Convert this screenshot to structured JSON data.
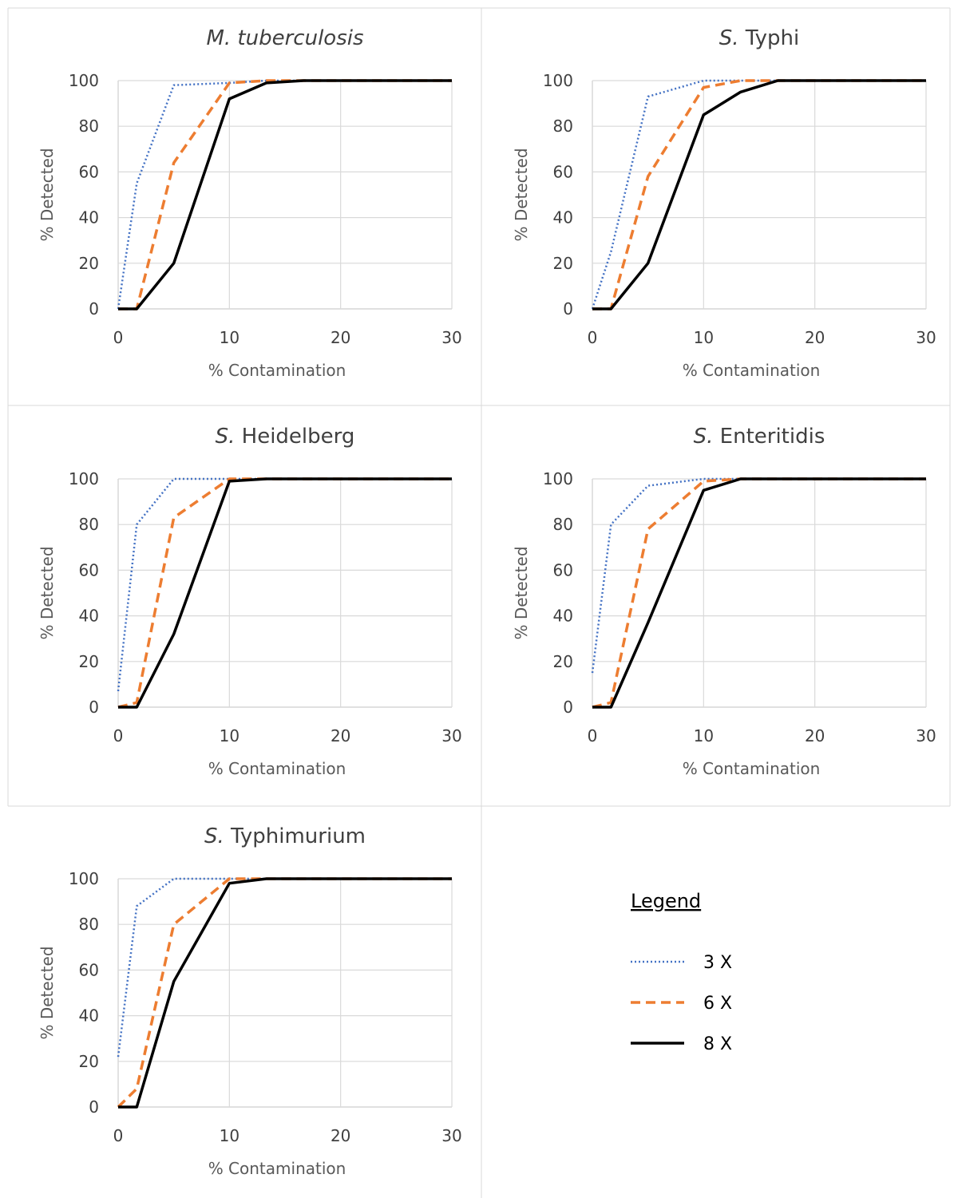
{
  "legend": {
    "title": "Legend",
    "items": [
      {
        "label": "3 X",
        "color": "#4472c4",
        "dash": "dotted"
      },
      {
        "label": "6 X",
        "color": "#ed7d31",
        "dash": "dashed"
      },
      {
        "label": "8 X",
        "color": "#000000",
        "dash": "solid"
      }
    ]
  },
  "chart_data": [
    {
      "type": "line",
      "title": "M. tuberculosis",
      "title_italic_prefix": "M. tuberculosis",
      "title_rest": "",
      "xlabel": "% Contamination",
      "ylabel": "% Detected",
      "xlim": [
        0,
        30
      ],
      "ylim": [
        0,
        100
      ],
      "xticks": [
        0,
        10,
        20,
        30
      ],
      "yticks": [
        0,
        20,
        40,
        60,
        80,
        100
      ],
      "grid": true,
      "series": [
        {
          "name": "3 X",
          "x": [
            0,
            1.67,
            5,
            10,
            13.33,
            16.67,
            30
          ],
          "y": [
            0,
            55,
            98,
            99,
            100,
            100,
            100
          ]
        },
        {
          "name": "6 X",
          "x": [
            0,
            1.67,
            5,
            10,
            13.33,
            16.67,
            30
          ],
          "y": [
            0,
            0,
            64,
            99,
            100,
            100,
            100
          ]
        },
        {
          "name": "8 X",
          "x": [
            0,
            1.67,
            5,
            10,
            13.33,
            16.67,
            30
          ],
          "y": [
            0,
            0,
            20,
            92,
            99,
            100,
            100
          ]
        }
      ]
    },
    {
      "type": "line",
      "title": "S. Typhi",
      "title_italic_prefix": "S.",
      "title_rest": " Typhi",
      "xlabel": "% Contamination",
      "ylabel": "% Detected",
      "xlim": [
        0,
        30
      ],
      "ylim": [
        0,
        100
      ],
      "xticks": [
        0,
        10,
        20,
        30
      ],
      "yticks": [
        0,
        20,
        40,
        60,
        80,
        100
      ],
      "grid": true,
      "series": [
        {
          "name": "3 X",
          "x": [
            0,
            1.67,
            5,
            10,
            13.33,
            16.67,
            30
          ],
          "y": [
            0,
            25,
            93,
            100,
            100,
            100,
            100
          ]
        },
        {
          "name": "6 X",
          "x": [
            0,
            1.67,
            5,
            10,
            13.33,
            16.67,
            30
          ],
          "y": [
            0,
            0,
            58,
            97,
            100,
            100,
            100
          ]
        },
        {
          "name": "8 X",
          "x": [
            0,
            1.67,
            5,
            10,
            13.33,
            16.67,
            30
          ],
          "y": [
            0,
            0,
            20,
            85,
            95,
            100,
            100
          ]
        }
      ]
    },
    {
      "type": "line",
      "title": "S. Heidelberg",
      "title_italic_prefix": "S.",
      "title_rest": " Heidelberg",
      "xlabel": "% Contamination",
      "ylabel": "% Detected",
      "xlim": [
        0,
        30
      ],
      "ylim": [
        0,
        100
      ],
      "xticks": [
        0,
        10,
        20,
        30
      ],
      "yticks": [
        0,
        20,
        40,
        60,
        80,
        100
      ],
      "grid": true,
      "series": [
        {
          "name": "3 X",
          "x": [
            0,
            1.67,
            5,
            10,
            13.33,
            16.67,
            30
          ],
          "y": [
            7,
            80,
            100,
            100,
            100,
            100,
            100
          ]
        },
        {
          "name": "6 X",
          "x": [
            0,
            1.67,
            5,
            10,
            13.33,
            16.67,
            30
          ],
          "y": [
            0,
            2,
            83,
            100,
            100,
            100,
            100
          ]
        },
        {
          "name": "8 X",
          "x": [
            0,
            1.67,
            5,
            10,
            13.33,
            16.67,
            30
          ],
          "y": [
            0,
            0,
            32,
            99,
            100,
            100,
            100
          ]
        }
      ]
    },
    {
      "type": "line",
      "title": "S. Enteritidis",
      "title_italic_prefix": "S.",
      "title_rest": " Enteritidis",
      "xlabel": "% Contamination",
      "ylabel": "% Detected",
      "xlim": [
        0,
        30
      ],
      "ylim": [
        0,
        100
      ],
      "xticks": [
        0,
        10,
        20,
        30
      ],
      "yticks": [
        0,
        20,
        40,
        60,
        80,
        100
      ],
      "grid": true,
      "series": [
        {
          "name": "3 X",
          "x": [
            0,
            1.67,
            5,
            10,
            13.33,
            16.67,
            30
          ],
          "y": [
            15,
            80,
            97,
            100,
            100,
            100,
            100
          ]
        },
        {
          "name": "6 X",
          "x": [
            0,
            1.67,
            5,
            10,
            13.33,
            16.67,
            30
          ],
          "y": [
            0,
            2,
            78,
            99,
            100,
            100,
            100
          ]
        },
        {
          "name": "8 X",
          "x": [
            0,
            1.67,
            5,
            10,
            13.33,
            16.67,
            30
          ],
          "y": [
            0,
            0,
            37,
            95,
            100,
            100,
            100
          ]
        }
      ]
    },
    {
      "type": "line",
      "title": "S. Typhimurium",
      "title_italic_prefix": "S.",
      "title_rest": " Typhimurium",
      "xlabel": "% Contamination",
      "ylabel": "% Detected",
      "xlim": [
        0,
        30
      ],
      "ylim": [
        0,
        100
      ],
      "xticks": [
        0,
        10,
        20,
        30
      ],
      "yticks": [
        0,
        20,
        40,
        60,
        80,
        100
      ],
      "grid": true,
      "series": [
        {
          "name": "3 X",
          "x": [
            0,
            1.67,
            5,
            10,
            13.33,
            16.67,
            30
          ],
          "y": [
            22,
            88,
            100,
            100,
            100,
            100,
            100
          ]
        },
        {
          "name": "6 X",
          "x": [
            0,
            1.67,
            5,
            10,
            13.33,
            16.67,
            30
          ],
          "y": [
            0,
            8,
            80,
            100,
            100,
            100,
            100
          ]
        },
        {
          "name": "8 X",
          "x": [
            0,
            1.67,
            5,
            10,
            13.33,
            16.67,
            30
          ],
          "y": [
            0,
            0,
            55,
            98,
            100,
            100,
            100
          ]
        }
      ]
    }
  ]
}
